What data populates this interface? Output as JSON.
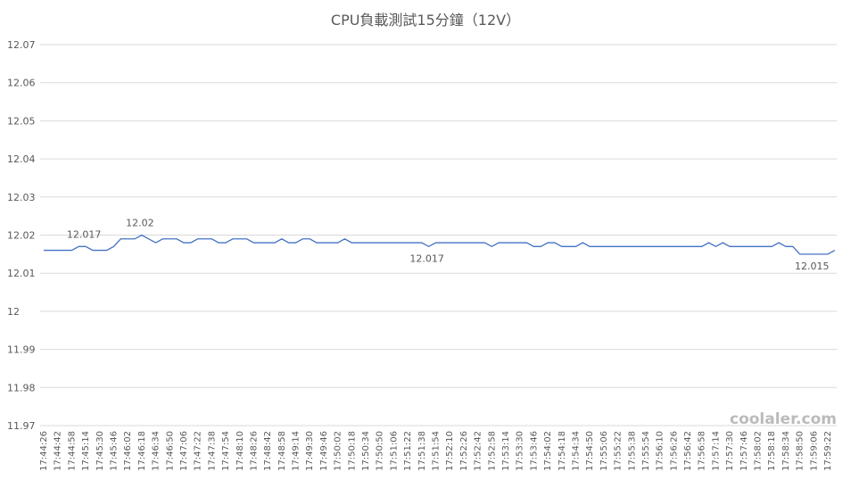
{
  "chart_data": {
    "type": "line",
    "title": "CPU負載測試15分鐘（12V）",
    "categories": [
      "17:44:26",
      null,
      "17:44:42",
      null,
      "17:44:58",
      null,
      "17:45:14",
      null,
      "17:45:30",
      null,
      "17:45:46",
      null,
      "17:46:02",
      null,
      "17:46:18",
      null,
      "17:46:34",
      null,
      "17:46:50",
      null,
      "17:47:06",
      null,
      "17:47:22",
      null,
      "17:47:38",
      null,
      "17:47:54",
      null,
      "17:48:10",
      null,
      "17:48:26",
      null,
      "17:48:42",
      null,
      "17:48:58",
      null,
      "17:49:14",
      null,
      "17:49:30",
      null,
      "17:49:46",
      null,
      "17:50:02",
      null,
      "17:50:18",
      null,
      "17:50:34",
      null,
      "17:50:50",
      null,
      "17:51:06",
      null,
      "17:51:22",
      null,
      "17:51:38",
      null,
      "17:51:54",
      null,
      "17:52:10",
      null,
      "17:52:26",
      null,
      "17:52:42",
      null,
      "17:52:58",
      null,
      "17:53:14",
      null,
      "17:53:30",
      null,
      "17:53:46",
      null,
      "17:54:02",
      null,
      "17:54:18",
      null,
      "17:54:34",
      null,
      "17:54:50",
      null,
      "17:55:06",
      null,
      "17:55:22",
      null,
      "17:55:38",
      null,
      "17:55:54",
      null,
      "17:56:10",
      null,
      "17:56:26",
      null,
      "17:56:42",
      null,
      "17:56:58",
      null,
      "17:57:14",
      null,
      "17:57:30",
      null,
      "17:57:46",
      null,
      "17:58:02",
      null,
      "17:58:18",
      null,
      "17:58:34",
      null,
      "17:58:50",
      null,
      "17:59:06",
      null,
      "17:59:22",
      null
    ],
    "values": [
      12.016,
      12.016,
      12.016,
      12.016,
      12.016,
      12.017,
      12.017,
      12.016,
      12.016,
      12.016,
      12.017,
      12.019,
      12.019,
      12.019,
      12.02,
      12.019,
      12.018,
      12.019,
      12.019,
      12.019,
      12.018,
      12.018,
      12.019,
      12.019,
      12.019,
      12.018,
      12.018,
      12.019,
      12.019,
      12.019,
      12.018,
      12.018,
      12.018,
      12.018,
      12.019,
      12.018,
      12.018,
      12.019,
      12.019,
      12.018,
      12.018,
      12.018,
      12.018,
      12.019,
      12.018,
      12.018,
      12.018,
      12.018,
      12.018,
      12.018,
      12.018,
      12.018,
      12.018,
      12.018,
      12.018,
      12.017,
      12.018,
      12.018,
      12.018,
      12.018,
      12.018,
      12.018,
      12.018,
      12.018,
      12.017,
      12.018,
      12.018,
      12.018,
      12.018,
      12.018,
      12.017,
      12.017,
      12.018,
      12.018,
      12.017,
      12.017,
      12.017,
      12.018,
      12.017,
      12.017,
      12.017,
      12.017,
      12.017,
      12.017,
      12.017,
      12.017,
      12.017,
      12.017,
      12.017,
      12.017,
      12.017,
      12.017,
      12.017,
      12.017,
      12.017,
      12.018,
      12.017,
      12.018,
      12.017,
      12.017,
      12.017,
      12.017,
      12.017,
      12.017,
      12.017,
      12.018,
      12.017,
      12.017,
      12.015,
      12.015,
      12.015,
      12.015,
      12.015,
      12.016
    ],
    "value_labels": [
      null,
      null,
      null,
      null,
      null,
      null,
      "12.017",
      null,
      null,
      null,
      null,
      null,
      null,
      null,
      "12.02",
      null,
      null,
      null,
      null,
      null,
      null,
      null,
      null,
      null,
      null,
      null,
      null,
      null,
      null,
      null,
      null,
      null,
      null,
      null,
      null,
      null,
      null,
      null,
      null,
      null,
      null,
      null,
      null,
      null,
      null,
      null,
      null,
      null,
      null,
      null,
      null,
      null,
      null,
      null,
      null,
      "12.017",
      null,
      null,
      null,
      null,
      null,
      null,
      null,
      null,
      null,
      null,
      null,
      null,
      null,
      null,
      null,
      null,
      null,
      null,
      null,
      null,
      null,
      null,
      null,
      null,
      null,
      null,
      null,
      null,
      null,
      null,
      null,
      null,
      null,
      null,
      null,
      null,
      null,
      null,
      null,
      null,
      null,
      null,
      null,
      null,
      null,
      null,
      null,
      null,
      null,
      null,
      null,
      null,
      null,
      null,
      "12.015",
      null,
      null,
      null
    ],
    "color": "#4472c4",
    "ylim": [
      11.97,
      12.07
    ],
    "yticks": [
      11.97,
      11.98,
      11.99,
      12,
      12.01,
      12.02,
      12.03,
      12.04,
      12.05,
      12.06,
      12.07
    ],
    "grid": true,
    "watermark": "coolaler.com"
  }
}
